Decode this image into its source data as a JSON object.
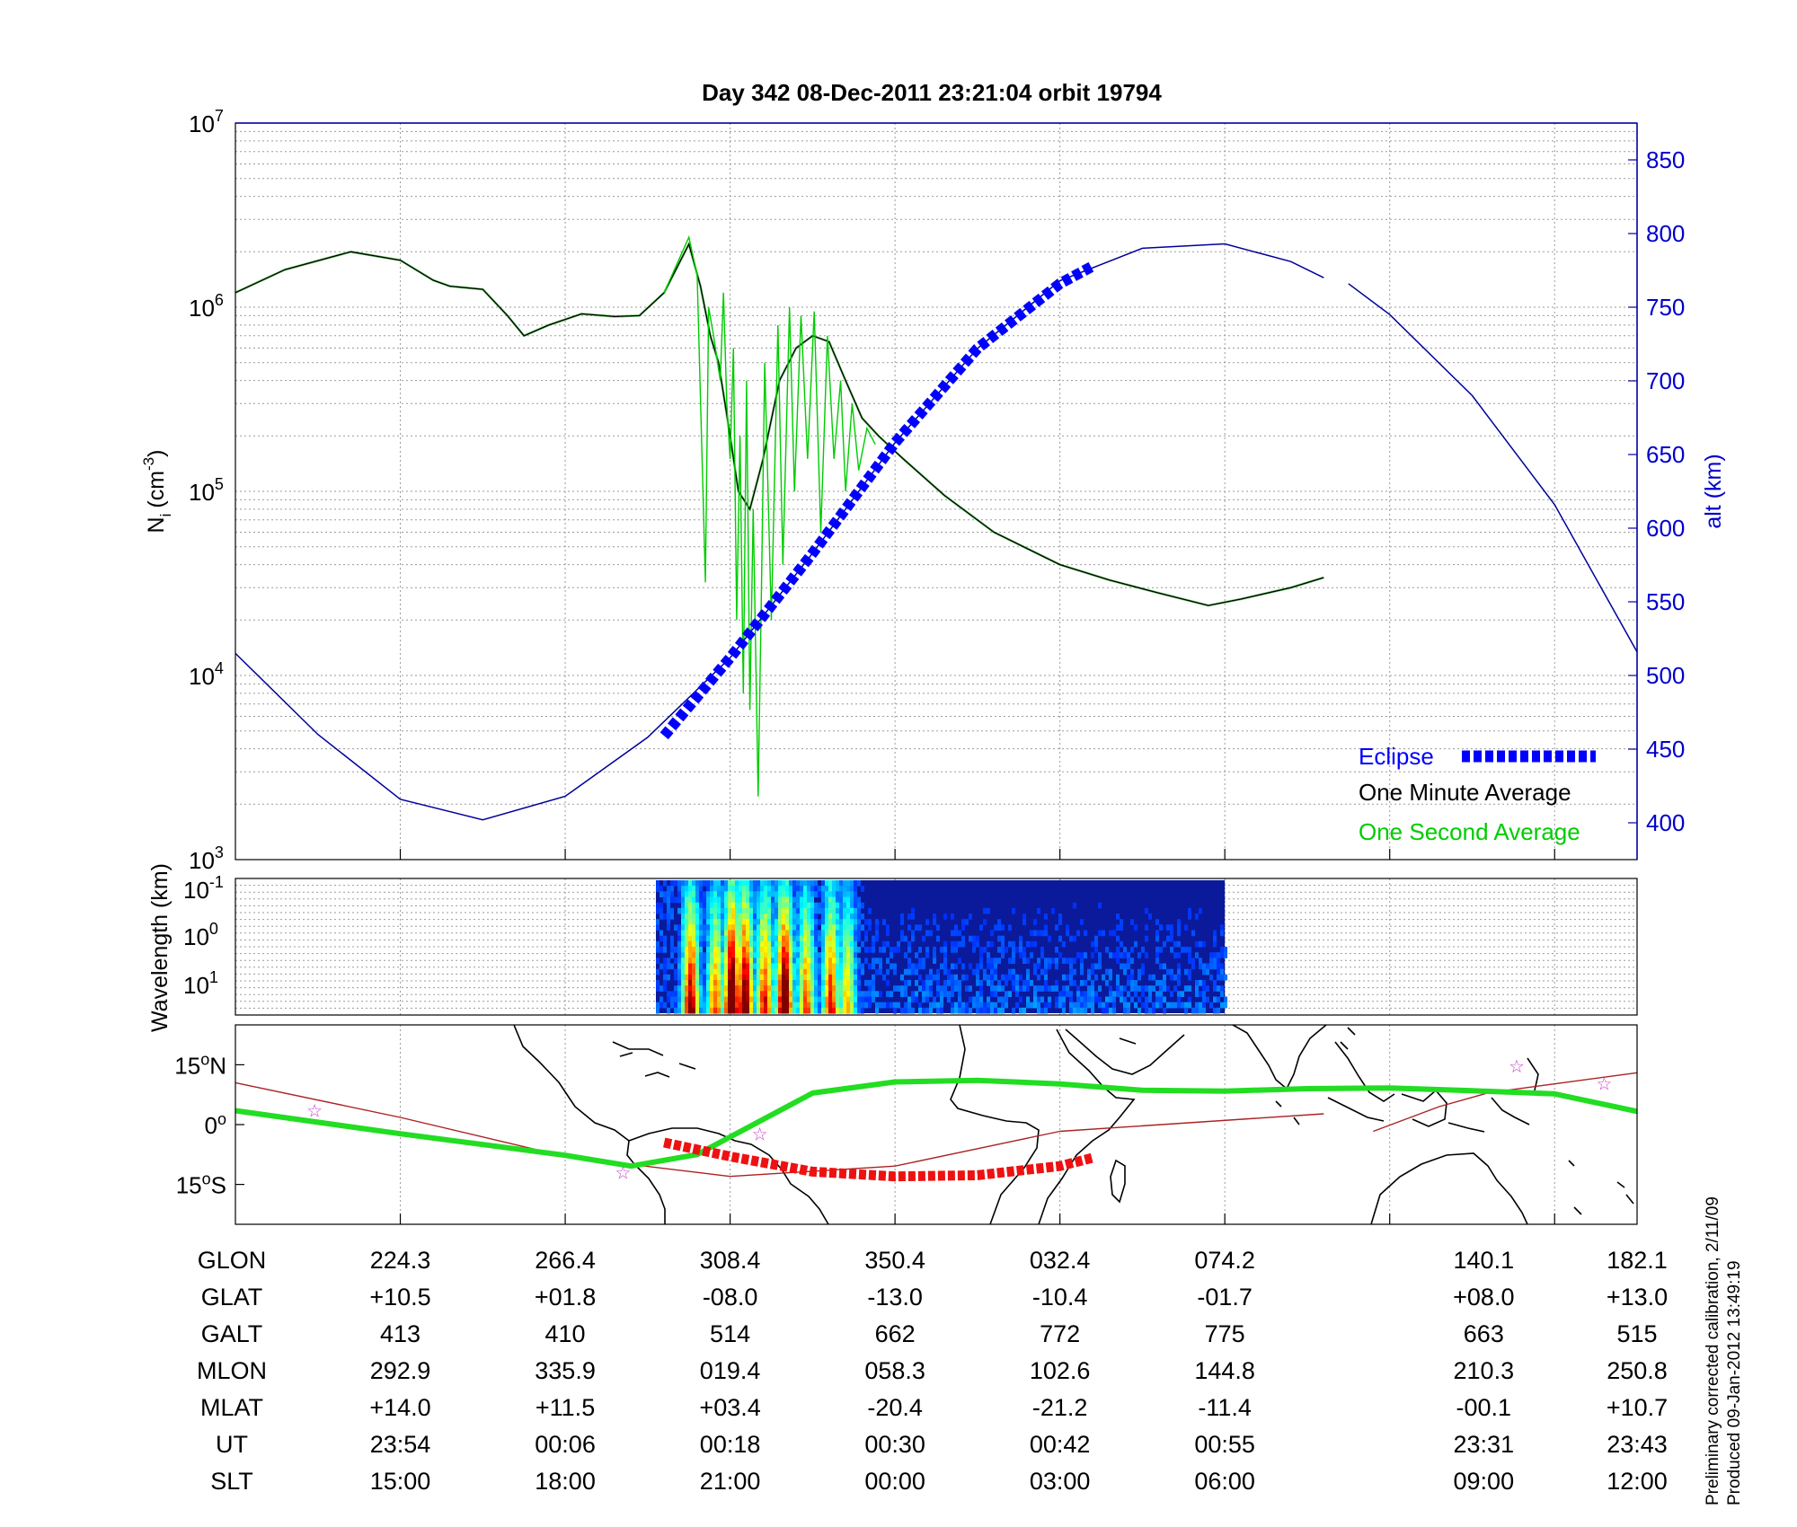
{
  "chart_data": [
    {
      "type": "line",
      "title": "Day 342  08-Dec-2011 23:21:04   orbit 19794",
      "ylabel_left_main": "N",
      "ylabel_left_sub": "i",
      "ylabel_left_unit": "(cm",
      "ylabel_left_exp": "-3",
      "ylabel_left_close": ")",
      "ylabel_right": "alt (km)",
      "yscale_left": "log",
      "ylim_left": [
        1000,
        10000000
      ],
      "left_ticks": [
        {
          "base": "10",
          "exp": "3",
          "value": 1000
        },
        {
          "base": "10",
          "exp": "4",
          "value": 10000
        },
        {
          "base": "10",
          "exp": "5",
          "value": 100000
        },
        {
          "base": "10",
          "exp": "6",
          "value": 1000000
        },
        {
          "base": "10",
          "exp": "7",
          "value": 10000000
        }
      ],
      "ylim_right": [
        375,
        875
      ],
      "right_ticks": [
        "400",
        "450",
        "500",
        "550",
        "600",
        "650",
        "700",
        "750",
        "800",
        "850"
      ],
      "grid": true,
      "legend_position": "bottom-right",
      "legend": [
        {
          "label": "Eclipse",
          "color": "#0000ff"
        },
        {
          "label": "One Minute Average",
          "color": "#000000"
        },
        {
          "label": "One Second Average",
          "color": "#00cc00"
        }
      ],
      "x_domain": [
        0,
        8.5
      ],
      "series": [
        {
          "name": "One Minute Average",
          "axis": "left",
          "color": "#000000",
          "points": [
            [
              0,
              1200000
            ],
            [
              0.3,
              1600000
            ],
            [
              0.7,
              2000000
            ],
            [
              1.0,
              1800000
            ],
            [
              1.2,
              1400000
            ],
            [
              1.3,
              1300000
            ],
            [
              1.5,
              1250000
            ],
            [
              1.65,
              900000
            ],
            [
              1.75,
              700000
            ],
            [
              1.9,
              800000
            ],
            [
              2.1,
              920000
            ],
            [
              2.3,
              890000
            ],
            [
              2.45,
              900000
            ],
            [
              2.6,
              1200000
            ],
            [
              2.75,
              2200000
            ],
            [
              2.82,
              1300000
            ],
            [
              2.88,
              700000
            ],
            [
              2.93,
              500000
            ],
            [
              3.0,
              200000
            ],
            [
              3.05,
              100000
            ],
            [
              3.12,
              80000
            ],
            [
              3.2,
              150000
            ],
            [
              3.3,
              400000
            ],
            [
              3.4,
              600000
            ],
            [
              3.5,
              700000
            ],
            [
              3.6,
              650000
            ],
            [
              3.7,
              400000
            ],
            [
              3.8,
              250000
            ],
            [
              3.9,
              200000
            ],
            [
              4.05,
              150000
            ],
            [
              4.3,
              95000
            ],
            [
              4.6,
              60000
            ],
            [
              5.0,
              40000
            ],
            [
              5.3,
              33000
            ],
            [
              5.6,
              28000
            ],
            [
              5.9,
              24000
            ],
            [
              6.1,
              26000
            ],
            [
              6.4,
              30000
            ],
            [
              6.6,
              34000
            ]
          ]
        },
        {
          "name": "One Second Average",
          "axis": "left",
          "color": "#00cc00",
          "points": [
            [
              2.6,
              1200000
            ],
            [
              2.75,
              2400000
            ],
            [
              2.8,
              1500000
            ],
            [
              2.85,
              32000
            ],
            [
              2.87,
              1000000
            ],
            [
              2.9,
              700000
            ],
            [
              2.94,
              400000
            ],
            [
              2.96,
              1200000
            ],
            [
              2.98,
              300000
            ],
            [
              3.0,
              150000
            ],
            [
              3.02,
              600000
            ],
            [
              3.04,
              20000
            ],
            [
              3.06,
              200000
            ],
            [
              3.08,
              8000
            ],
            [
              3.1,
              400000
            ],
            [
              3.12,
              6500
            ],
            [
              3.14,
              80000
            ],
            [
              3.17,
              2200
            ],
            [
              3.19,
              30000
            ],
            [
              3.21,
              500000
            ],
            [
              3.25,
              20000
            ],
            [
              3.29,
              800000
            ],
            [
              3.32,
              40000
            ],
            [
              3.36,
              1000000
            ],
            [
              3.39,
              100000
            ],
            [
              3.43,
              900000
            ],
            [
              3.47,
              150000
            ],
            [
              3.51,
              950000
            ],
            [
              3.55,
              60000
            ],
            [
              3.59,
              700000
            ],
            [
              3.63,
              150000
            ],
            [
              3.67,
              400000
            ],
            [
              3.7,
              100000
            ],
            [
              3.74,
              300000
            ],
            [
              3.78,
              130000
            ],
            [
              3.83,
              220000
            ],
            [
              3.88,
              180000
            ]
          ]
        },
        {
          "name": "alt",
          "axis": "right",
          "color": "#000099",
          "segments": [
            [
              [
                0,
                515
              ],
              [
                0.5,
                460
              ],
              [
                1.0,
                416
              ],
              [
                1.5,
                402
              ],
              [
                2.0,
                418
              ],
              [
                2.5,
                458
              ],
              [
                3.0,
                512
              ],
              [
                3.5,
                583
              ],
              [
                4.0,
                658
              ],
              [
                4.5,
                722
              ],
              [
                5.0,
                768
              ],
              [
                5.5,
                790
              ],
              [
                6.0,
                793
              ],
              [
                6.4,
                781
              ],
              [
                6.6,
                770
              ]
            ],
            [
              [
                6.75,
                766
              ],
              [
                7.0,
                745
              ],
              [
                7.5,
                690
              ],
              [
                8.0,
                616
              ],
              [
                8.5,
                516
              ]
            ]
          ]
        },
        {
          "name": "Eclipse",
          "axis": "right",
          "color": "#0000ff",
          "points": [
            [
              2.6,
              459
            ],
            [
              3.0,
              512
            ],
            [
              3.5,
              583
            ],
            [
              4.0,
              658
            ],
            [
              4.5,
              722
            ],
            [
              5.0,
              766
            ],
            [
              5.2,
              778
            ]
          ]
        }
      ]
    },
    {
      "type": "heatmap",
      "ylabel": "Wavelength (km)",
      "yscale": "log",
      "y_ticks": [
        {
          "base": "10",
          "exp": "-1"
        },
        {
          "base": "10",
          "exp": "0"
        },
        {
          "base": "10",
          "exp": "1"
        }
      ],
      "x_extent": [
        2.55,
        6.0
      ],
      "colormap": "jet",
      "hot_bands": [
        [
          2.75,
          0.8
        ],
        [
          2.9,
          0.6
        ],
        [
          3.0,
          1.0
        ],
        [
          3.08,
          0.9
        ],
        [
          3.2,
          0.7
        ],
        [
          3.32,
          0.95
        ],
        [
          3.45,
          0.6
        ],
        [
          3.6,
          0.7
        ],
        [
          3.7,
          0.5
        ]
      ]
    },
    {
      "type": "map",
      "y_ticks": [
        {
          "deg": "15",
          "hem": "N",
          "lat": 15
        },
        {
          "deg": "0",
          "hem": "",
          "lat": 0
        },
        {
          "deg": "15",
          "hem": "S",
          "lat": -15
        }
      ],
      "lat_range": [
        -25,
        25
      ],
      "ground_track": [
        [
          0,
          10.5
        ],
        [
          1,
          1.8
        ],
        [
          2,
          -8.0
        ],
        [
          3,
          -13.0
        ],
        [
          4,
          -10.4
        ],
        [
          5,
          -1.7
        ],
        [
          6.6,
          2.7
        ],
        [
          6.9,
          -1.7
        ],
        [
          7.3,
          4.5
        ],
        [
          7.6,
          8.0
        ],
        [
          8.5,
          13.0
        ]
      ],
      "magnetic_equator": [
        [
          0,
          3.5
        ],
        [
          1.0,
          -2.3
        ],
        [
          2.0,
          -7.7
        ],
        [
          2.4,
          -10.4
        ],
        [
          2.8,
          -7.5
        ],
        [
          3.5,
          7.9
        ],
        [
          4.0,
          10.7
        ],
        [
          4.5,
          11.1
        ],
        [
          5.0,
          10.2
        ],
        [
          5.5,
          8.6
        ],
        [
          6.0,
          8.4
        ],
        [
          6.5,
          9.0
        ],
        [
          7.0,
          9.2
        ],
        [
          7.5,
          8.5
        ],
        [
          8.0,
          7.7
        ],
        [
          8.5,
          3.3
        ]
      ],
      "eclipse_track": [
        [
          2.6,
          -4.5
        ],
        [
          3.0,
          -8.0
        ],
        [
          3.5,
          -11.8
        ],
        [
          4.0,
          -13.0
        ],
        [
          4.5,
          -12.7
        ],
        [
          5.0,
          -10.4
        ],
        [
          5.2,
          -8.3
        ]
      ],
      "stations": [
        [
          0.48,
          3.5
        ],
        [
          2.35,
          -12.0
        ],
        [
          3.18,
          -2.4
        ],
        [
          7.77,
          14.6
        ],
        [
          8.3,
          10.3
        ]
      ]
    }
  ],
  "table": {
    "rows": [
      {
        "label": "GLON",
        "values": [
          "224.3",
          "266.4",
          "308.4",
          "350.4",
          "032.4",
          "074.2",
          "140.1",
          "182.1"
        ]
      },
      {
        "label": "GLAT",
        "values": [
          "+10.5",
          "+01.8",
          "-08.0",
          "-13.0",
          "-10.4",
          "-01.7",
          "+08.0",
          "+13.0"
        ]
      },
      {
        "label": "GALT",
        "values": [
          "413",
          "410",
          "514",
          "662",
          "772",
          "775",
          "663",
          "515"
        ]
      },
      {
        "label": "MLON",
        "values": [
          "292.9",
          "335.9",
          "019.4",
          "058.3",
          "102.6",
          "144.8",
          "210.3",
          "250.8"
        ]
      },
      {
        "label": "MLAT",
        "values": [
          "+14.0",
          "+11.5",
          "+03.4",
          "-20.4",
          "-21.2",
          "-11.4",
          "-00.1",
          "+10.7"
        ]
      },
      {
        "label": "UT",
        "values": [
          "23:54",
          "00:06",
          "00:18",
          "00:30",
          "00:42",
          "00:55",
          "23:31",
          "23:43"
        ]
      },
      {
        "label": "SLT",
        "values": [
          "15:00",
          "18:00",
          "21:00",
          "00:00",
          "03:00",
          "06:00",
          "09:00",
          "12:00"
        ]
      }
    ],
    "column_x": [
      1,
      2,
      3,
      4,
      5,
      6,
      7.57,
      8.5
    ]
  },
  "footnote_1": "Preliminary corrected calibration, 2/11/09",
  "footnote_2": "Produced 09-Jan-2012 13:49:19"
}
